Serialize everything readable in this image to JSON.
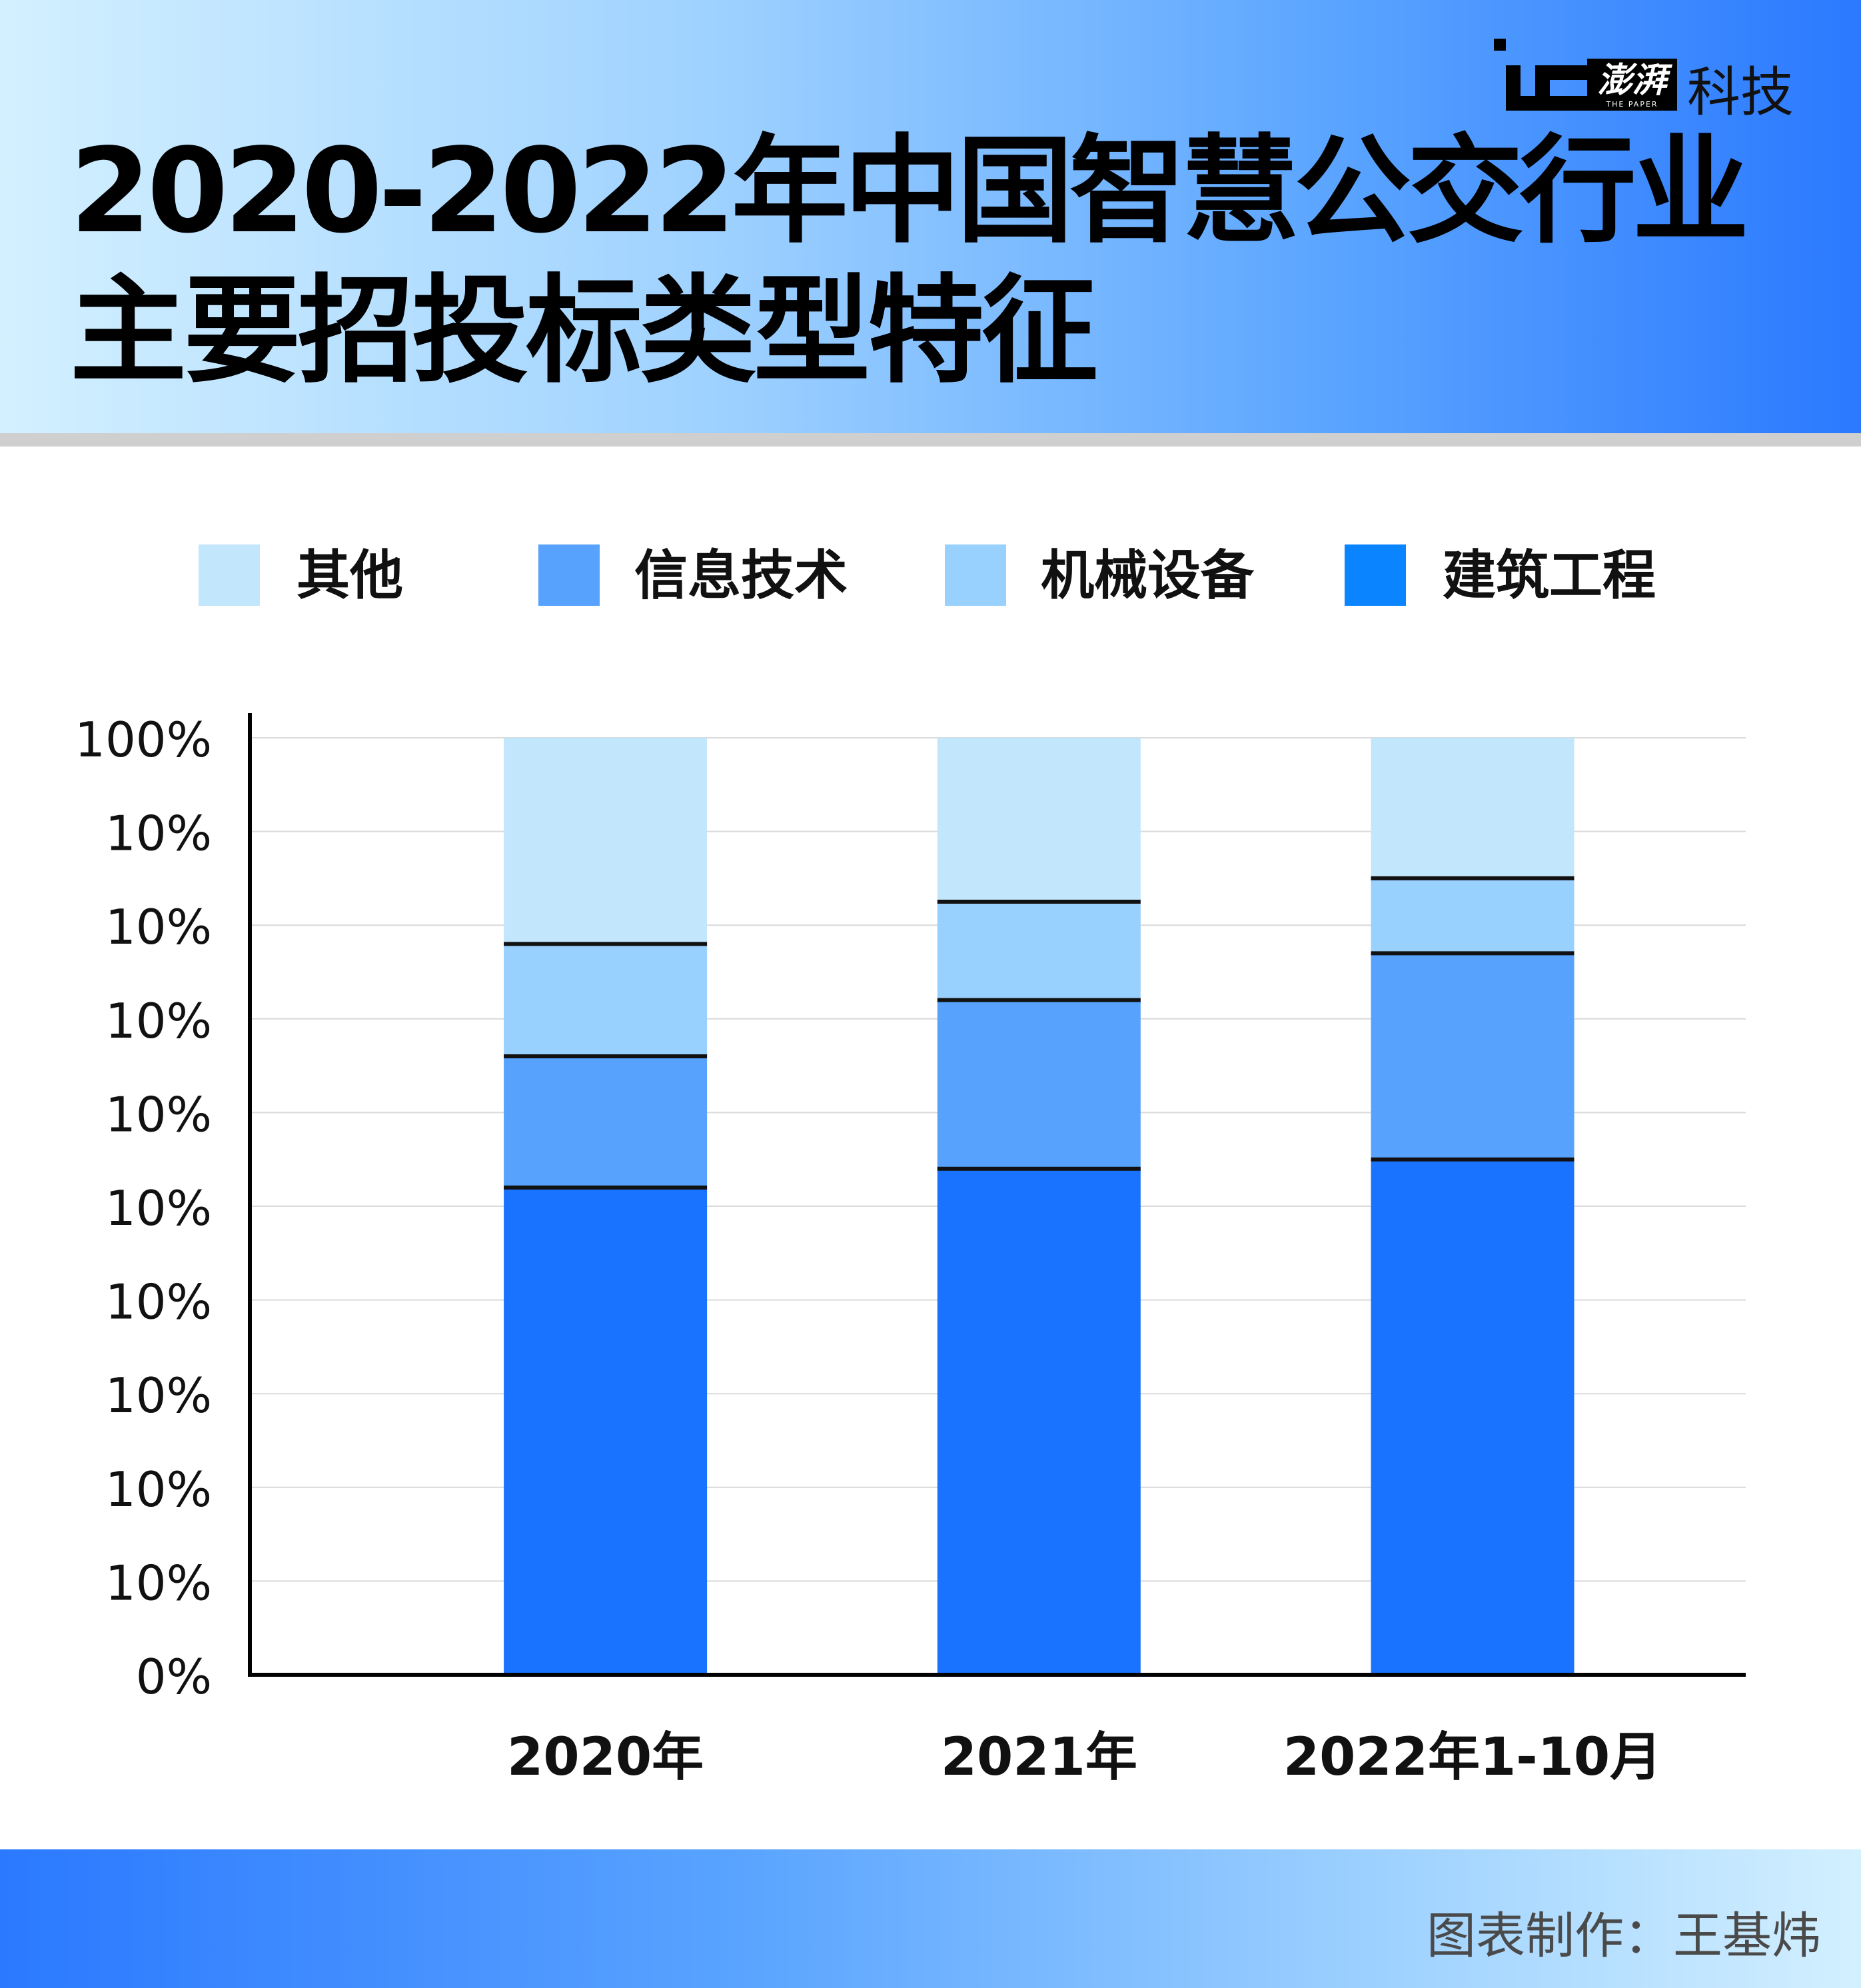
{
  "header": {
    "title_line1": "2020-2022年中国智慧公交行业",
    "title_line2": "主要招投标类型特征",
    "brand": "澎湃",
    "brand_sub": "THE PAPER",
    "section": "科技"
  },
  "footer": {
    "credit": "图表制作：王基炜"
  },
  "colors": {
    "other": "#c2e6fc",
    "it": "#56a2fd",
    "machinery": "#98d0fe",
    "construction": "#1a73ff",
    "legend_construction": "#0a84ff",
    "header_gradient": [
      "#d3f0ff",
      "#9fd2ff",
      "#5aa4ff",
      "#2b79ff"
    ]
  },
  "chart_data": {
    "type": "bar",
    "stacked": true,
    "categories": [
      "2020年",
      "2021年",
      "2022年1-10月"
    ],
    "y_tick_labels": [
      "0%",
      "10%",
      "10%",
      "10%",
      "10%",
      "10%",
      "10%",
      "10%",
      "10%",
      "10%",
      "100%"
    ],
    "ylim": [
      0,
      100
    ],
    "grid": true,
    "legend_position": "top",
    "legend": [
      "其他",
      "信息技术",
      "机械设备",
      "建筑工程"
    ],
    "series": [
      {
        "name": "建筑工程",
        "values": [
          52,
          54,
          55
        ]
      },
      {
        "name": "信息技术",
        "values": [
          14,
          18,
          22
        ]
      },
      {
        "name": "机械设备",
        "values": [
          12,
          10.5,
          8
        ]
      },
      {
        "name": "其他",
        "values": [
          22,
          17.5,
          15
        ]
      }
    ]
  }
}
